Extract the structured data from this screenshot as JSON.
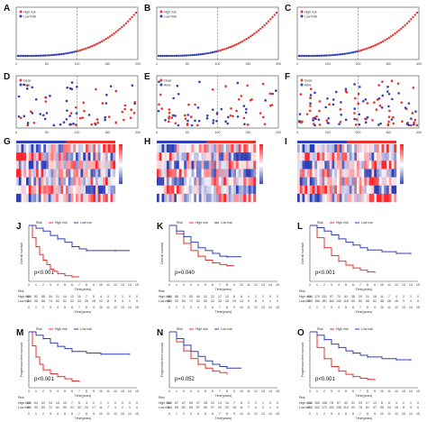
{
  "colors": {
    "high": "#e8312c",
    "low": "#2f3fb8",
    "heat_high": "#d9252b",
    "heat_low": "#2c3fb4",
    "heat_mid": "#ffffff"
  },
  "icons": {
    "risk_marker": "circle-icon"
  },
  "panel_letters": [
    "A",
    "B",
    "C",
    "D",
    "E",
    "F",
    "G",
    "H",
    "I",
    "J",
    "K",
    "L",
    "M",
    "N",
    "O"
  ],
  "legend": {
    "high": "High risk",
    "low": "Low Risk",
    "dead": "Dead",
    "alive": "Alive",
    "risk_legend": "Risk",
    "km_high": "High risk",
    "km_low": "Low risk"
  },
  "km": {
    "os_ylabel": "Overall survival",
    "pfs_ylabel": "Progression free survival",
    "xlabel": "Time(years)",
    "table_title": "Risk",
    "row_high": "High risk",
    "row_low": "Low risk"
  },
  "chart_data": [
    {
      "panel": "A",
      "type": "scatter",
      "x_max": 200,
      "xticks": [
        "0",
        "50",
        "100",
        "150",
        "200"
      ],
      "cutoff": 100
    },
    {
      "panel": "B",
      "type": "scatter",
      "x_max": 200,
      "xticks": [
        "0",
        "50",
        "100",
        "150",
        "200"
      ],
      "cutoff": 100
    },
    {
      "panel": "C",
      "type": "scatter",
      "x_max": 400,
      "xticks": [
        "0",
        "100",
        "200",
        "300",
        "400"
      ],
      "cutoff": 200
    },
    {
      "panel": "D",
      "type": "scatter",
      "x_max": 200,
      "xticks": [
        "0",
        "50",
        "100",
        "150",
        "200"
      ],
      "cutoff": 100
    },
    {
      "panel": "E",
      "type": "scatter",
      "x_max": 200,
      "xticks": [
        "0",
        "50",
        "100",
        "150",
        "200"
      ],
      "cutoff": 100
    },
    {
      "panel": "F",
      "type": "scatter",
      "x_max": 400,
      "xticks": [
        "0",
        "100",
        "200",
        "300",
        "400"
      ],
      "cutoff": 200
    },
    {
      "panel": "G",
      "type": "heatmap",
      "rows": 7,
      "cols": 40
    },
    {
      "panel": "H",
      "type": "heatmap",
      "rows": 7,
      "cols": 40
    },
    {
      "panel": "I",
      "type": "heatmap",
      "rows": 7,
      "cols": 40
    },
    {
      "panel": "J",
      "type": "line",
      "pvalue": "p<0.001",
      "xticks": [
        "0",
        "1",
        "2",
        "3",
        "4",
        "5",
        "6",
        "7",
        "8",
        "9",
        "10",
        "11",
        "12",
        "13",
        "14",
        "15"
      ],
      "series": [
        {
          "name": "High risk",
          "x": [
            0,
            0.5,
            1,
            1.5,
            2,
            2.5,
            3,
            3.5,
            4,
            5,
            6,
            7
          ],
          "y": [
            1,
            0.78,
            0.62,
            0.48,
            0.38,
            0.3,
            0.22,
            0.18,
            0.14,
            0.1,
            0.08,
            0.08
          ]
        },
        {
          "name": "Low risk",
          "x": [
            0,
            1,
            2,
            3,
            4,
            5,
            6,
            7,
            8,
            10,
            12,
            14
          ],
          "y": [
            1,
            0.95,
            0.9,
            0.82,
            0.76,
            0.7,
            0.62,
            0.58,
            0.55,
            0.55,
            0.55,
            0.55
          ]
        }
      ],
      "table": {
        "high": [
          "110",
          "82",
          "58",
          "34",
          "21",
          "14",
          "12",
          "10",
          "7",
          "5",
          "4",
          "3",
          "2",
          "1",
          "0",
          "0"
        ],
        "low": [
          "110",
          "95",
          "86",
          "74",
          "62",
          "51",
          "42",
          "33",
          "25",
          "18",
          "12",
          "8",
          "5",
          "3",
          "1",
          "0"
        ]
      }
    },
    {
      "panel": "K",
      "type": "line",
      "pvalue": "p=0.040",
      "xticks": [
        "0",
        "1",
        "2",
        "3",
        "4",
        "5",
        "6",
        "7",
        "8",
        "9",
        "10",
        "11",
        "12",
        "13",
        "14",
        "15"
      ],
      "series": [
        {
          "name": "High risk",
          "x": [
            0,
            1,
            2,
            3,
            4,
            5,
            6,
            7,
            8,
            9
          ],
          "y": [
            1,
            0.85,
            0.68,
            0.55,
            0.45,
            0.38,
            0.33,
            0.3,
            0.28,
            0.28
          ]
        },
        {
          "name": "Low risk",
          "x": [
            0,
            1,
            2,
            3,
            4,
            5,
            6,
            7,
            8,
            10
          ],
          "y": [
            1,
            0.9,
            0.8,
            0.7,
            0.6,
            0.55,
            0.5,
            0.45,
            0.44,
            0.44
          ]
        }
      ],
      "table": {
        "high": [
          "100",
          "88",
          "71",
          "53",
          "40",
          "31",
          "22",
          "17",
          "12",
          "8",
          "6",
          "4",
          "2",
          "1",
          "0",
          "0"
        ],
        "low": [
          "100",
          "92",
          "84",
          "72",
          "62",
          "50",
          "41",
          "33",
          "26",
          "19",
          "13",
          "9",
          "6",
          "3",
          "1",
          "0"
        ]
      }
    },
    {
      "panel": "L",
      "type": "line",
      "pvalue": "p<0.001",
      "xticks": [
        "0",
        "1",
        "2",
        "3",
        "4",
        "5",
        "6",
        "7",
        "8",
        "9",
        "10",
        "11",
        "12",
        "13",
        "14",
        "15"
      ],
      "series": [
        {
          "name": "High risk",
          "x": [
            0,
            1,
            2,
            3,
            4,
            5,
            6,
            7,
            8,
            9
          ],
          "y": [
            1,
            0.78,
            0.6,
            0.46,
            0.36,
            0.29,
            0.24,
            0.2,
            0.17,
            0.15
          ]
        },
        {
          "name": "Low risk",
          "x": [
            0,
            1,
            2,
            3,
            4,
            5,
            6,
            7,
            8,
            10,
            12,
            14
          ],
          "y": [
            1,
            0.96,
            0.9,
            0.83,
            0.76,
            0.7,
            0.65,
            0.6,
            0.56,
            0.53,
            0.5,
            0.48
          ]
        }
      ],
      "table": {
        "high": [
          "210",
          "170",
          "131",
          "97",
          "70",
          "51",
          "38",
          "29",
          "21",
          "15",
          "11",
          "7",
          "4",
          "2",
          "1",
          "0"
        ],
        "low": [
          "210",
          "196",
          "181",
          "162",
          "140",
          "118",
          "99",
          "82",
          "66",
          "51",
          "38",
          "26",
          "16",
          "9",
          "4",
          "0"
        ]
      }
    },
    {
      "panel": "M",
      "type": "line",
      "pvalue": "p<0.001",
      "xticks": [
        "0",
        "1",
        "2",
        "3",
        "4",
        "5",
        "6",
        "7",
        "8",
        "9",
        "10",
        "11",
        "12",
        "13",
        "14",
        "15"
      ],
      "series": [
        {
          "name": "High risk",
          "x": [
            0,
            0.5,
            1,
            1.5,
            2,
            3,
            4,
            5,
            6,
            7
          ],
          "y": [
            1,
            0.75,
            0.55,
            0.42,
            0.32,
            0.25,
            0.2,
            0.16,
            0.12,
            0.1
          ]
        },
        {
          "name": "Low risk",
          "x": [
            0,
            1,
            2,
            3,
            4,
            5,
            6,
            8,
            10,
            12,
            14
          ],
          "y": [
            1,
            0.94,
            0.88,
            0.8,
            0.74,
            0.7,
            0.65,
            0.62,
            0.6,
            0.6,
            0.6
          ]
        }
      ],
      "table": {
        "high": [
          "100",
          "64",
          "40",
          "24",
          "15",
          "10",
          "7",
          "5",
          "3",
          "2",
          "1",
          "1",
          "0",
          "0",
          "0",
          "0"
        ],
        "low": [
          "100",
          "92",
          "83",
          "72",
          "61",
          "50",
          "41",
          "32",
          "24",
          "17",
          "11",
          "7",
          "4",
          "2",
          "1",
          "0"
        ]
      }
    },
    {
      "panel": "N",
      "type": "line",
      "pvalue": "p=0.052",
      "xticks": [
        "0",
        "1",
        "2",
        "3",
        "4",
        "5",
        "6",
        "7",
        "8",
        "9",
        "10",
        "11",
        "12",
        "13",
        "14",
        "15"
      ],
      "series": [
        {
          "name": "High risk",
          "x": [
            0,
            1,
            2,
            3,
            4,
            5,
            6,
            7,
            8
          ],
          "y": [
            1,
            0.82,
            0.66,
            0.52,
            0.42,
            0.35,
            0.3,
            0.27,
            0.25
          ]
        },
        {
          "name": "Low risk",
          "x": [
            0,
            1,
            2,
            3,
            4,
            5,
            6,
            7,
            8,
            10
          ],
          "y": [
            1,
            0.88,
            0.76,
            0.65,
            0.56,
            0.48,
            0.42,
            0.38,
            0.35,
            0.35
          ]
        }
      ],
      "table": {
        "high": [
          "110",
          "87",
          "67",
          "50",
          "37",
          "28",
          "20",
          "14",
          "10",
          "7",
          "5",
          "3",
          "2",
          "1",
          "0",
          "0"
        ],
        "low": [
          "110",
          "95",
          "82",
          "69",
          "57",
          "46",
          "37",
          "29",
          "22",
          "16",
          "11",
          "7",
          "4",
          "2",
          "1",
          "0"
        ]
      }
    },
    {
      "panel": "O",
      "type": "line",
      "pvalue": "p<0.001",
      "xticks": [
        "0",
        "1",
        "2",
        "3",
        "4",
        "5",
        "6",
        "7",
        "8",
        "9",
        "10",
        "11",
        "12",
        "13",
        "14",
        "15"
      ],
      "series": [
        {
          "name": "High risk",
          "x": [
            0,
            1,
            2,
            3,
            4,
            5,
            6,
            7,
            8,
            9
          ],
          "y": [
            1,
            0.72,
            0.52,
            0.38,
            0.3,
            0.24,
            0.2,
            0.17,
            0.15,
            0.13
          ]
        },
        {
          "name": "Low risk",
          "x": [
            0,
            1,
            2,
            3,
            4,
            5,
            6,
            7,
            8,
            10,
            12,
            14
          ],
          "y": [
            1,
            0.94,
            0.86,
            0.78,
            0.72,
            0.66,
            0.62,
            0.58,
            0.55,
            0.52,
            0.5,
            0.48
          ]
        }
      ],
      "table": {
        "high": [
          "210",
          "150",
          "108",
          "78",
          "57",
          "42",
          "31",
          "23",
          "17",
          "12",
          "8",
          "5",
          "3",
          "2",
          "1",
          "0"
        ],
        "low": [
          "210",
          "192",
          "172",
          "151",
          "130",
          "110",
          "92",
          "76",
          "61",
          "47",
          "35",
          "24",
          "15",
          "8",
          "3",
          "0"
        ]
      }
    }
  ]
}
